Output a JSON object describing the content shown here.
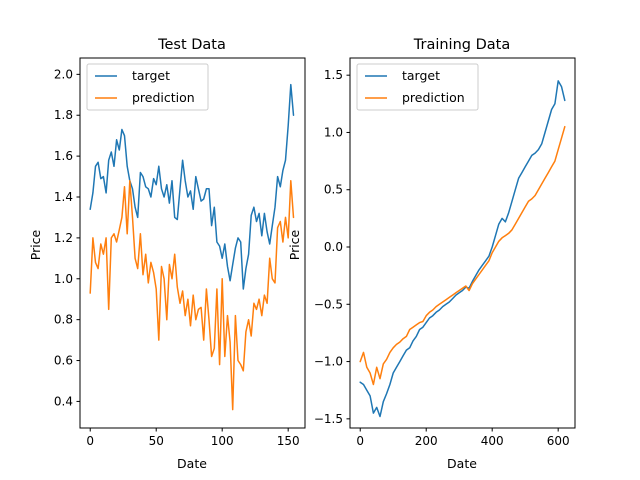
{
  "chart_data": [
    {
      "type": "line",
      "title": "Test Data",
      "xlabel": "Date",
      "ylabel": "Price",
      "xlim": [
        -7.75,
        162.75
      ],
      "ylim": [
        0.27,
        2.08
      ],
      "xticks": [
        0,
        50,
        100,
        150
      ],
      "yticks": [
        0.4,
        0.6,
        0.8,
        1.0,
        1.2,
        1.4,
        1.6,
        1.8,
        2.0
      ],
      "ytick_labels": [
        "0.4",
        "0.6",
        "0.8",
        "1.0",
        "1.2",
        "1.4",
        "1.6",
        "1.8",
        "2.0"
      ],
      "grid": false,
      "legend": "upper-left",
      "series": [
        {
          "name": "target",
          "color": "#1f77b4",
          "x": [
            0,
            2,
            4,
            6,
            8,
            10,
            12,
            14,
            16,
            18,
            20,
            22,
            24,
            26,
            28,
            30,
            32,
            34,
            36,
            38,
            40,
            42,
            44,
            46,
            48,
            50,
            52,
            54,
            56,
            58,
            60,
            62,
            64,
            66,
            68,
            70,
            72,
            74,
            76,
            78,
            80,
            82,
            84,
            86,
            88,
            90,
            92,
            94,
            96,
            98,
            100,
            102,
            104,
            106,
            108,
            110,
            112,
            114,
            116,
            118,
            120,
            122,
            124,
            126,
            128,
            130,
            132,
            134,
            136,
            138,
            140,
            142,
            144,
            146,
            148,
            150,
            152,
            154
          ],
          "y": [
            1.34,
            1.42,
            1.55,
            1.57,
            1.49,
            1.5,
            1.42,
            1.58,
            1.62,
            1.55,
            1.68,
            1.63,
            1.73,
            1.7,
            1.55,
            1.48,
            1.44,
            1.35,
            1.3,
            1.52,
            1.5,
            1.45,
            1.44,
            1.4,
            1.49,
            1.46,
            1.55,
            1.44,
            1.4,
            1.46,
            1.37,
            1.48,
            1.3,
            1.29,
            1.44,
            1.58,
            1.48,
            1.4,
            1.43,
            1.34,
            1.5,
            1.44,
            1.38,
            1.39,
            1.44,
            1.44,
            1.26,
            1.35,
            1.18,
            1.16,
            1.1,
            1.17,
            1.06,
            0.99,
            1.07,
            1.15,
            1.2,
            1.18,
            0.95,
            1.05,
            1.12,
            1.31,
            1.35,
            1.28,
            1.32,
            1.21,
            1.32,
            1.23,
            1.17,
            1.26,
            1.35,
            1.5,
            1.45,
            1.53,
            1.58,
            1.75,
            1.95,
            1.8
          ]
        },
        {
          "name": "prediction",
          "color": "#ff7f0e",
          "x": [
            0,
            2,
            4,
            6,
            8,
            10,
            12,
            14,
            16,
            18,
            20,
            22,
            24,
            26,
            28,
            30,
            32,
            34,
            36,
            38,
            40,
            42,
            44,
            46,
            48,
            50,
            52,
            54,
            56,
            58,
            60,
            62,
            64,
            66,
            68,
            70,
            72,
            74,
            76,
            78,
            80,
            82,
            84,
            86,
            88,
            90,
            92,
            94,
            96,
            98,
            100,
            102,
            104,
            106,
            108,
            110,
            112,
            114,
            116,
            118,
            120,
            122,
            124,
            126,
            128,
            130,
            132,
            134,
            136,
            138,
            140,
            142,
            144,
            146,
            148,
            150,
            152,
            154
          ],
          "y": [
            0.93,
            1.2,
            1.08,
            1.05,
            1.17,
            1.12,
            1.2,
            0.85,
            1.2,
            1.22,
            1.18,
            1.24,
            1.3,
            1.45,
            1.22,
            1.48,
            1.3,
            1.1,
            1.05,
            1.22,
            1.02,
            1.12,
            0.98,
            1.08,
            1.03,
            0.95,
            0.7,
            1.06,
            1.0,
            0.8,
            1.07,
            1.0,
            1.12,
            0.96,
            0.88,
            0.94,
            0.82,
            0.9,
            0.77,
            0.92,
            0.8,
            0.85,
            0.86,
            0.7,
            0.95,
            0.8,
            0.62,
            0.66,
            0.95,
            0.58,
            1.0,
            0.62,
            0.82,
            0.69,
            0.36,
            0.82,
            0.6,
            0.58,
            0.55,
            0.74,
            0.8,
            0.72,
            0.88,
            0.85,
            0.9,
            0.82,
            0.92,
            0.88,
            1.1,
            1.0,
            0.98,
            1.25,
            1.28,
            1.18,
            1.3,
            1.2,
            1.48,
            1.3
          ]
        }
      ]
    },
    {
      "type": "line",
      "title": "Training Data",
      "xlabel": "Date",
      "ylabel": "Price",
      "xlim": [
        -31,
        651
      ],
      "ylim": [
        -1.58,
        1.65
      ],
      "xticks": [
        0,
        200,
        400,
        600
      ],
      "yticks": [
        -1.5,
        -1.0,
        -0.5,
        0.0,
        0.5,
        1.0,
        1.5
      ],
      "ytick_labels": [
        "−1.5",
        "−1.0",
        "−0.5",
        "0.0",
        "0.5",
        "1.0",
        "1.5"
      ],
      "grid": false,
      "legend": "upper-left",
      "series": [
        {
          "name": "target",
          "color": "#1f77b4",
          "x": [
            0,
            10,
            20,
            30,
            40,
            50,
            60,
            70,
            80,
            90,
            100,
            110,
            120,
            130,
            140,
            150,
            160,
            170,
            180,
            190,
            200,
            210,
            220,
            230,
            240,
            250,
            260,
            270,
            280,
            290,
            300,
            310,
            320,
            330,
            340,
            350,
            360,
            370,
            380,
            390,
            400,
            410,
            420,
            430,
            440,
            450,
            460,
            470,
            480,
            490,
            500,
            510,
            520,
            530,
            540,
            550,
            560,
            570,
            580,
            590,
            600,
            610,
            620
          ],
          "y": [
            -1.18,
            -1.2,
            -1.25,
            -1.3,
            -1.45,
            -1.4,
            -1.48,
            -1.35,
            -1.28,
            -1.2,
            -1.1,
            -1.05,
            -1.0,
            -0.95,
            -0.9,
            -0.88,
            -0.82,
            -0.78,
            -0.72,
            -0.7,
            -0.66,
            -0.62,
            -0.6,
            -0.57,
            -0.55,
            -0.52,
            -0.5,
            -0.48,
            -0.45,
            -0.42,
            -0.4,
            -0.38,
            -0.35,
            -0.36,
            -0.3,
            -0.25,
            -0.2,
            -0.16,
            -0.12,
            -0.08,
            0.0,
            0.1,
            0.2,
            0.25,
            0.22,
            0.3,
            0.4,
            0.5,
            0.6,
            0.65,
            0.7,
            0.75,
            0.8,
            0.82,
            0.85,
            0.9,
            1.0,
            1.1,
            1.2,
            1.25,
            1.45,
            1.4,
            1.28
          ]
        },
        {
          "name": "prediction",
          "color": "#ff7f0e",
          "x": [
            0,
            10,
            20,
            30,
            40,
            50,
            60,
            70,
            80,
            90,
            100,
            110,
            120,
            130,
            140,
            150,
            160,
            170,
            180,
            190,
            200,
            210,
            220,
            230,
            240,
            250,
            260,
            270,
            280,
            290,
            300,
            310,
            320,
            330,
            340,
            350,
            360,
            370,
            380,
            390,
            400,
            410,
            420,
            430,
            440,
            450,
            460,
            470,
            480,
            490,
            500,
            510,
            520,
            530,
            540,
            550,
            560,
            570,
            580,
            590,
            600,
            610,
            620
          ],
          "y": [
            -1.0,
            -0.92,
            -1.05,
            -1.1,
            -1.2,
            -1.05,
            -1.15,
            -1.02,
            -0.98,
            -0.92,
            -0.88,
            -0.85,
            -0.83,
            -0.8,
            -0.78,
            -0.72,
            -0.7,
            -0.68,
            -0.66,
            -0.65,
            -0.6,
            -0.57,
            -0.55,
            -0.52,
            -0.5,
            -0.48,
            -0.46,
            -0.44,
            -0.42,
            -0.4,
            -0.38,
            -0.36,
            -0.34,
            -0.38,
            -0.32,
            -0.28,
            -0.24,
            -0.2,
            -0.16,
            -0.12,
            -0.05,
            0.0,
            0.05,
            0.08,
            0.1,
            0.12,
            0.15,
            0.2,
            0.25,
            0.3,
            0.35,
            0.4,
            0.42,
            0.45,
            0.5,
            0.55,
            0.6,
            0.65,
            0.7,
            0.75,
            0.85,
            0.95,
            1.05
          ]
        }
      ]
    }
  ]
}
